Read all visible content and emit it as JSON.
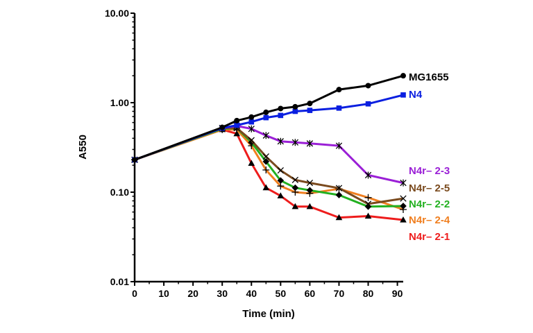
{
  "chart_data": {
    "type": "line",
    "xlabel": "Time (min)",
    "ylabel": "A550",
    "x_scale": "linear",
    "y_scale": "log",
    "xlim": [
      0,
      92
    ],
    "ylim": [
      0.01,
      10
    ],
    "x_ticks": [
      0,
      10,
      20,
      30,
      40,
      50,
      60,
      70,
      80,
      90
    ],
    "x_tick_labels": [
      "0",
      "10",
      "20",
      "30",
      "40",
      "50",
      "60",
      "70",
      "80",
      "90"
    ],
    "y_ticks": [
      0.01,
      0.1,
      1,
      10
    ],
    "y_tick_labels": [
      "0.01",
      "0.10",
      "1.00",
      "10.00"
    ],
    "grid": false,
    "legend": "inline labels at right end of each series",
    "series": [
      {
        "name": "MG1655",
        "color": "#000000",
        "marker": "circle",
        "x": [
          0,
          30,
          35,
          40,
          45,
          50,
          55,
          60,
          70,
          80,
          92
        ],
        "y": [
          0.23,
          0.53,
          0.63,
          0.69,
          0.78,
          0.86,
          0.9,
          0.98,
          1.4,
          1.55,
          2.0
        ]
      },
      {
        "name": "N4",
        "color": "#0a1fe0",
        "marker": "square",
        "x": [
          0,
          30,
          35,
          40,
          45,
          50,
          55,
          60,
          70,
          80,
          92
        ],
        "y": [
          0.23,
          0.52,
          0.56,
          0.61,
          0.68,
          0.72,
          0.8,
          0.82,
          0.87,
          0.97,
          1.22
        ]
      },
      {
        "name": "N4r– 2-3",
        "color": "#9a1fd6",
        "marker": "asterisk",
        "x": [
          0,
          30,
          35,
          40,
          45,
          50,
          55,
          60,
          70,
          80,
          92
        ],
        "y": [
          0.23,
          0.52,
          0.55,
          0.51,
          0.43,
          0.37,
          0.36,
          0.35,
          0.33,
          0.155,
          0.127
        ]
      },
      {
        "name": "N4r– 2-5",
        "color": "#7a4a1e",
        "marker": "x",
        "x": [
          0,
          30,
          35,
          40,
          45,
          50,
          55,
          60,
          70,
          80,
          92
        ],
        "y": [
          0.23,
          0.52,
          0.52,
          0.38,
          0.25,
          0.175,
          0.137,
          0.127,
          0.111,
          0.074,
          0.085
        ]
      },
      {
        "name": "N4r– 2-2",
        "color": "#22b020",
        "marker": "diamond",
        "x": [
          0,
          30,
          35,
          40,
          45,
          50,
          55,
          60,
          70,
          80,
          92
        ],
        "y": [
          0.23,
          0.51,
          0.52,
          0.36,
          0.22,
          0.135,
          0.112,
          0.105,
          0.093,
          0.069,
          0.07
        ]
      },
      {
        "name": "N4r– 2-4",
        "color": "#f07f20",
        "marker": "plus",
        "x": [
          0,
          30,
          35,
          40,
          45,
          50,
          55,
          60,
          70,
          80,
          92
        ],
        "y": [
          0.23,
          0.5,
          0.5,
          0.33,
          0.177,
          0.117,
          0.1,
          0.097,
          0.109,
          0.087,
          0.064
        ]
      },
      {
        "name": "N4r– 2-1",
        "color": "#ee1c1c",
        "marker": "triangle",
        "x": [
          0,
          30,
          35,
          40,
          45,
          50,
          55,
          60,
          70,
          80,
          92
        ],
        "y": [
          0.23,
          0.5,
          0.45,
          0.21,
          0.112,
          0.091,
          0.069,
          0.069,
          0.052,
          0.054,
          0.049
        ]
      }
    ]
  }
}
